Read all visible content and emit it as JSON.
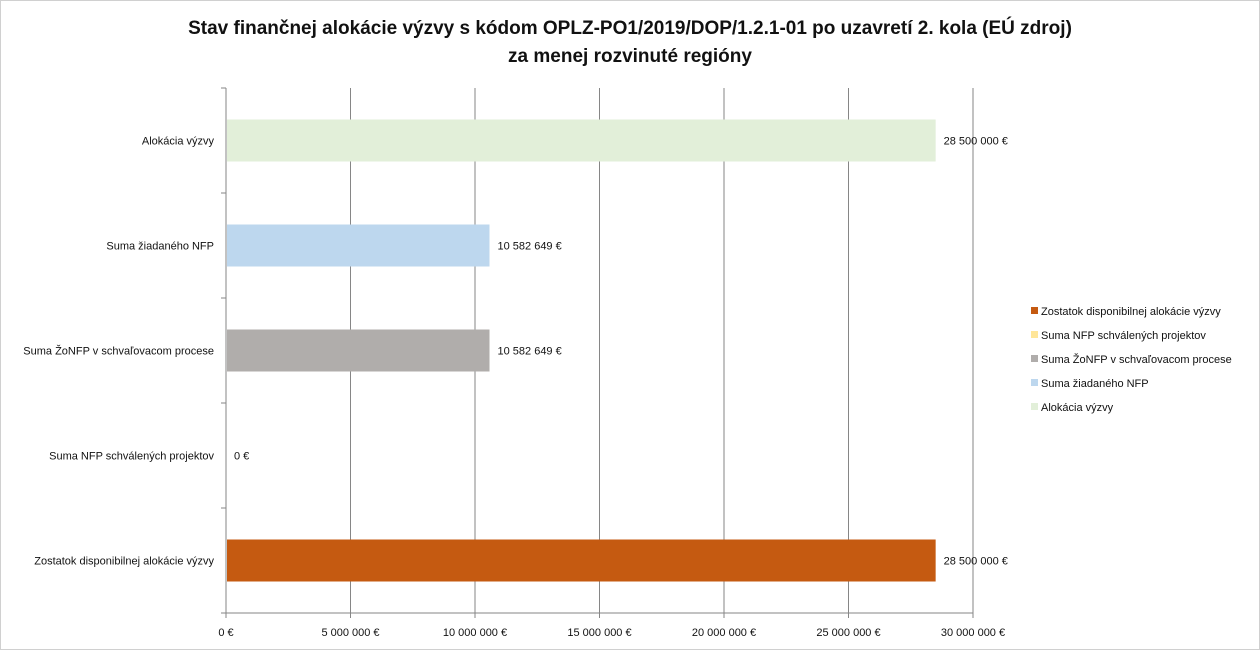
{
  "chart_data": {
    "type": "bar",
    "orientation": "horizontal",
    "title": "Stav finančnej alokácie výzvy s kódom OPLZ-PO1/2019/DOP/1.2.1-01 po uzavretí 2. kola (EÚ zdroj)",
    "subtitle": "za menej rozvinuté regióny",
    "categories": [
      "Alokácia výzvy",
      "Suma žiadaného NFP",
      "Suma ŽoNFP v schvaľovacom procese",
      "Suma NFP schválených projektov",
      "Zostatok disponibilnej alokácie výzvy"
    ],
    "values": [
      28500000,
      10582649,
      10582649,
      0,
      28500000
    ],
    "data_labels": [
      "28 500 000 €",
      "10 582 649 €",
      "10 582 649 €",
      "0 €",
      "28 500 000 €"
    ],
    "colors": [
      "#e2efd9",
      "#bdd7ee",
      "#b0adab",
      "#ffe699",
      "#c55a11"
    ],
    "xlim": [
      0,
      30000000
    ],
    "x_ticks": [
      0,
      5000000,
      10000000,
      15000000,
      20000000,
      25000000,
      30000000
    ],
    "x_tick_labels": [
      "0 €",
      "5 000 000 €",
      "10 000 000 €",
      "15 000 000 €",
      "20 000 000 €",
      "25 000 000 €",
      "30 000 000 €"
    ],
    "grid": "vertical",
    "legend_position": "right",
    "legend": [
      {
        "label": "Zostatok disponibilnej alokácie výzvy",
        "color": "#c55a11"
      },
      {
        "label": "Suma NFP schválených projektov",
        "color": "#ffe699"
      },
      {
        "label": "Suma ŽoNFP v schvaľovacom procese",
        "color": "#b0adab"
      },
      {
        "label": "Suma žiadaného NFP",
        "color": "#bdd7ee"
      },
      {
        "label": "Alokácia výzvy",
        "color": "#e2efd9"
      }
    ]
  }
}
